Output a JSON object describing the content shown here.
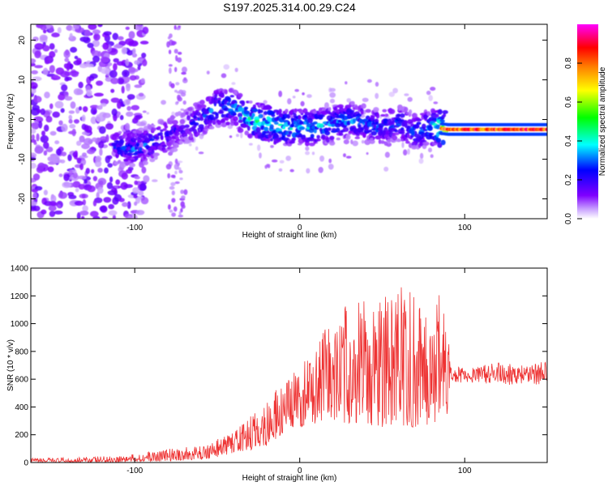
{
  "title": "S197.2025.314.00.29.C24",
  "chart_data": [
    {
      "type": "heatmap",
      "title": "S197.2025.314.00.29.C24",
      "xlabel": "Height of straight line (km)",
      "ylabel": "Frequency (Hz)",
      "xlim": [
        -163,
        150
      ],
      "ylim": [
        -25,
        24
      ],
      "xticks": [
        -100,
        0,
        100
      ],
      "yticks": [
        -20,
        -10,
        0,
        10,
        20
      ],
      "colorbar": {
        "label": "Normalized spectral amplitude",
        "range": [
          0.0,
          1.0
        ],
        "ticks": [
          0.0,
          0.2,
          0.4,
          0.6,
          0.8
        ],
        "tick_labels": [
          "0.0",
          "0.2",
          "0.4",
          "0.6",
          "0.8"
        ],
        "colors": [
          "#ffffff",
          "#7f00ff",
          "#0000ff",
          "#00ffff",
          "#00ff00",
          "#ffff00",
          "#ff8000",
          "#ff0000",
          "#ff00ff"
        ]
      },
      "ridge": {
        "description": "Dominant frequency track vs height",
        "x": [
          -110,
          -100,
          -90,
          -80,
          -70,
          -60,
          -50,
          -40,
          -30,
          -20,
          -10,
          0,
          10,
          20,
          30,
          40,
          50,
          60,
          70,
          80,
          90,
          100,
          110,
          120,
          130,
          140,
          150
        ],
        "y": [
          -7,
          -7.5,
          -6,
          -4,
          -2,
          0,
          3,
          3,
          0,
          -1,
          -2,
          -2,
          -2,
          -1,
          0,
          -1,
          -2,
          -1,
          -3,
          -2,
          -2.5,
          -2.5,
          -2.5,
          -2.5,
          -2.5,
          -2.5,
          -2.5
        ],
        "amplitude": [
          0.25,
          0.3,
          0.3,
          0.25,
          0.2,
          0.3,
          0.35,
          0.35,
          0.45,
          0.5,
          0.45,
          0.4,
          0.4,
          0.35,
          0.35,
          0.3,
          0.3,
          0.3,
          0.3,
          0.35,
          0.8,
          0.85,
          0.85,
          0.85,
          0.85,
          0.85,
          0.85
        ]
      }
    },
    {
      "type": "line",
      "xlabel": "Height of straight line (km)",
      "ylabel": "SNR (10 * v/v)",
      "xlim": [
        -163,
        150
      ],
      "ylim": [
        0,
        1400
      ],
      "xticks": [
        -100,
        0,
        100
      ],
      "yticks": [
        0,
        200,
        400,
        600,
        800,
        1000,
        1200,
        1400
      ],
      "series": [
        {
          "name": "SNR",
          "color": "#ee3333",
          "envelope_x": [
            -163,
            -140,
            -120,
            -100,
            -80,
            -60,
            -50,
            -40,
            -30,
            -20,
            -10,
            0,
            10,
            20,
            30,
            40,
            50,
            60,
            70,
            80,
            90,
            91,
            100,
            110,
            120,
            130,
            140,
            150
          ],
          "envelope_low": [
            0,
            0,
            0,
            5,
            10,
            20,
            40,
            70,
            90,
            120,
            200,
            250,
            280,
            300,
            280,
            260,
            250,
            250,
            240,
            280,
            300,
            580,
            570,
            570,
            560,
            560,
            560,
            560
          ],
          "envelope_high": [
            30,
            35,
            45,
            60,
            100,
            120,
            170,
            220,
            330,
            480,
            560,
            700,
            860,
            1050,
            1170,
            1230,
            1250,
            1260,
            1270,
            1270,
            1200,
            720,
            680,
            700,
            720,
            720,
            720,
            730
          ]
        }
      ]
    }
  ]
}
